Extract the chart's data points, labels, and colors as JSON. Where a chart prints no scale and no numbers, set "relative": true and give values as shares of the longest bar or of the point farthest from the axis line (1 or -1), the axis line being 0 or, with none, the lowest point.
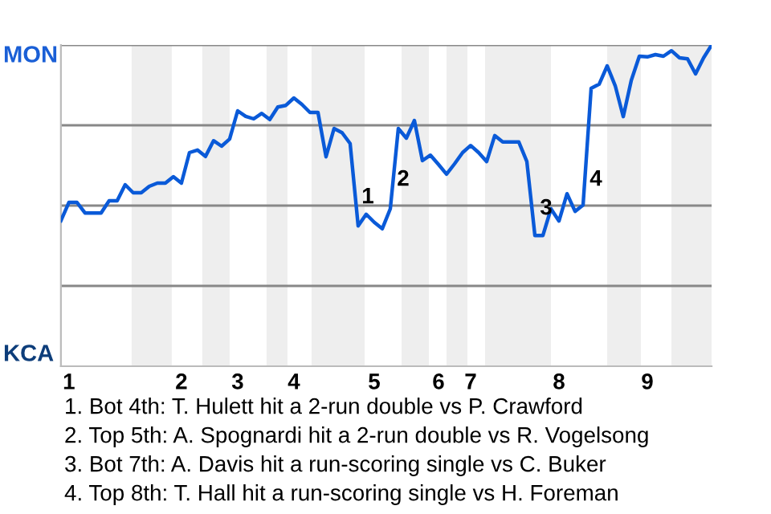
{
  "chart_data": {
    "type": "line",
    "relative": true,
    "categories": [
      null,
      "1",
      null,
      null,
      null,
      null,
      null,
      null,
      null,
      null,
      null,
      null,
      null,
      null,
      null,
      "2",
      null,
      null,
      null,
      null,
      null,
      null,
      "3",
      null,
      null,
      null,
      null,
      null,
      null,
      "4",
      null,
      null,
      null,
      null,
      null,
      null,
      null,
      null,
      null,
      "5",
      null,
      null,
      null,
      null,
      null,
      null,
      null,
      "6",
      null,
      null,
      null,
      "7",
      null,
      null,
      null,
      null,
      null,
      null,
      null,
      null,
      null,
      null,
      "8",
      null,
      null,
      null,
      null,
      null,
      null,
      null,
      null,
      null,
      null,
      "9",
      null,
      null,
      null,
      null,
      null,
      null,
      null,
      null
    ],
    "series": [
      {
        "color": "#0a5ad8",
        "values": [
          0.453,
          0.51,
          0.51,
          0.477,
          0.477,
          0.477,
          0.515,
          0.515,
          0.565,
          0.54,
          0.54,
          0.56,
          0.57,
          0.57,
          0.59,
          0.57,
          0.665,
          0.673,
          0.653,
          0.702,
          0.685,
          0.707,
          0.795,
          0.778,
          0.77,
          0.787,
          0.768,
          0.807,
          0.812,
          0.835,
          0.815,
          0.79,
          0.79,
          0.652,
          0.74,
          0.727,
          0.693,
          0.437,
          0.473,
          0.448,
          0.428,
          0.49,
          0.74,
          0.71,
          0.765,
          0.64,
          0.657,
          0.628,
          0.598,
          0.63,
          0.665,
          0.687,
          0.665,
          0.637,
          0.718,
          0.698,
          0.698,
          0.698,
          0.637,
          0.407,
          0.407,
          0.49,
          0.452,
          0.537,
          0.482,
          0.502,
          0.865,
          0.878,
          0.935,
          0.873,
          0.777,
          0.89,
          0.965,
          0.963,
          0.97,
          0.965,
          0.982,
          0.96,
          0.957,
          0.91,
          0.96,
          1
        ]
      }
    ],
    "grid": "y",
    "marker": "none",
    "line_style": "solid",
    "annotations": [
      "MON",
      "KCA",
      "1",
      "2",
      "3",
      "4",
      "1. Bot 4th: T. Hulett hit a 2-run double vs P. Crawford",
      "2. Top 5th: A. Spognardi hit a 2-run double vs R. Vogelsong",
      "3. Bot 7th: A. Davis hit a run-scoring single vs C. Buker",
      "4. Top 8th: T. Hall hit a run-scoring single vs H. Foreman"
    ]
  }
}
